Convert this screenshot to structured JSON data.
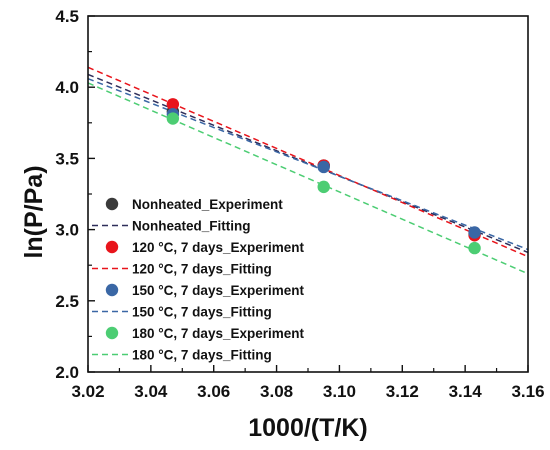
{
  "chart_data": {
    "type": "scatter",
    "xlabel": "1000/(T/K)",
    "ylabel": "ln(P/Pa)",
    "xlim": [
      3.02,
      3.16
    ],
    "ylim": [
      2.0,
      4.5
    ],
    "xticks": [
      "3.02",
      "3.04",
      "3.06",
      "3.08",
      "3.10",
      "3.12",
      "3.14",
      "3.16"
    ],
    "yticks": [
      "2.0",
      "2.5",
      "3.0",
      "3.5",
      "4.0",
      "4.5"
    ],
    "grid": false,
    "legend_position": "bottom-left",
    "series": [
      {
        "name": "Nonheated_Experiment",
        "kind": "points",
        "color": "#3a3a3a",
        "x": [
          3.047,
          3.095,
          3.143
        ],
        "y": [
          3.83,
          3.45,
          2.97
        ]
      },
      {
        "name": "Nonheated_Fitting",
        "kind": "line",
        "color": "#2e2e5a",
        "x": [
          3.02,
          3.16
        ],
        "y": [
          4.09,
          2.84
        ]
      },
      {
        "name": "120 °C, 7 days_Experiment",
        "kind": "points",
        "color": "#e8141b",
        "x": [
          3.047,
          3.095,
          3.143
        ],
        "y": [
          3.88,
          3.45,
          2.96
        ]
      },
      {
        "name": "120 °C, 7 days_Fitting",
        "kind": "line",
        "color": "#e8141b",
        "x": [
          3.02,
          3.16
        ],
        "y": [
          4.14,
          2.81
        ]
      },
      {
        "name": "150 °C, 7 days_Experiment",
        "kind": "points",
        "color": "#3a67a5",
        "x": [
          3.047,
          3.095,
          3.143
        ],
        "y": [
          3.81,
          3.44,
          2.98
        ]
      },
      {
        "name": "150 °C, 7 days_Fitting",
        "kind": "line",
        "color": "#3a67a5",
        "x": [
          3.02,
          3.16
        ],
        "y": [
          4.06,
          2.86
        ]
      },
      {
        "name": "180 °C, 7 days_Experiment",
        "kind": "points",
        "color": "#4ccd73",
        "x": [
          3.047,
          3.095,
          3.143
        ],
        "y": [
          3.78,
          3.3,
          2.87
        ]
      },
      {
        "name": "180 °C, 7 days_Fitting",
        "kind": "line",
        "color": "#4ccd73",
        "x": [
          3.02,
          3.16
        ],
        "y": [
          4.03,
          2.69
        ]
      }
    ]
  }
}
